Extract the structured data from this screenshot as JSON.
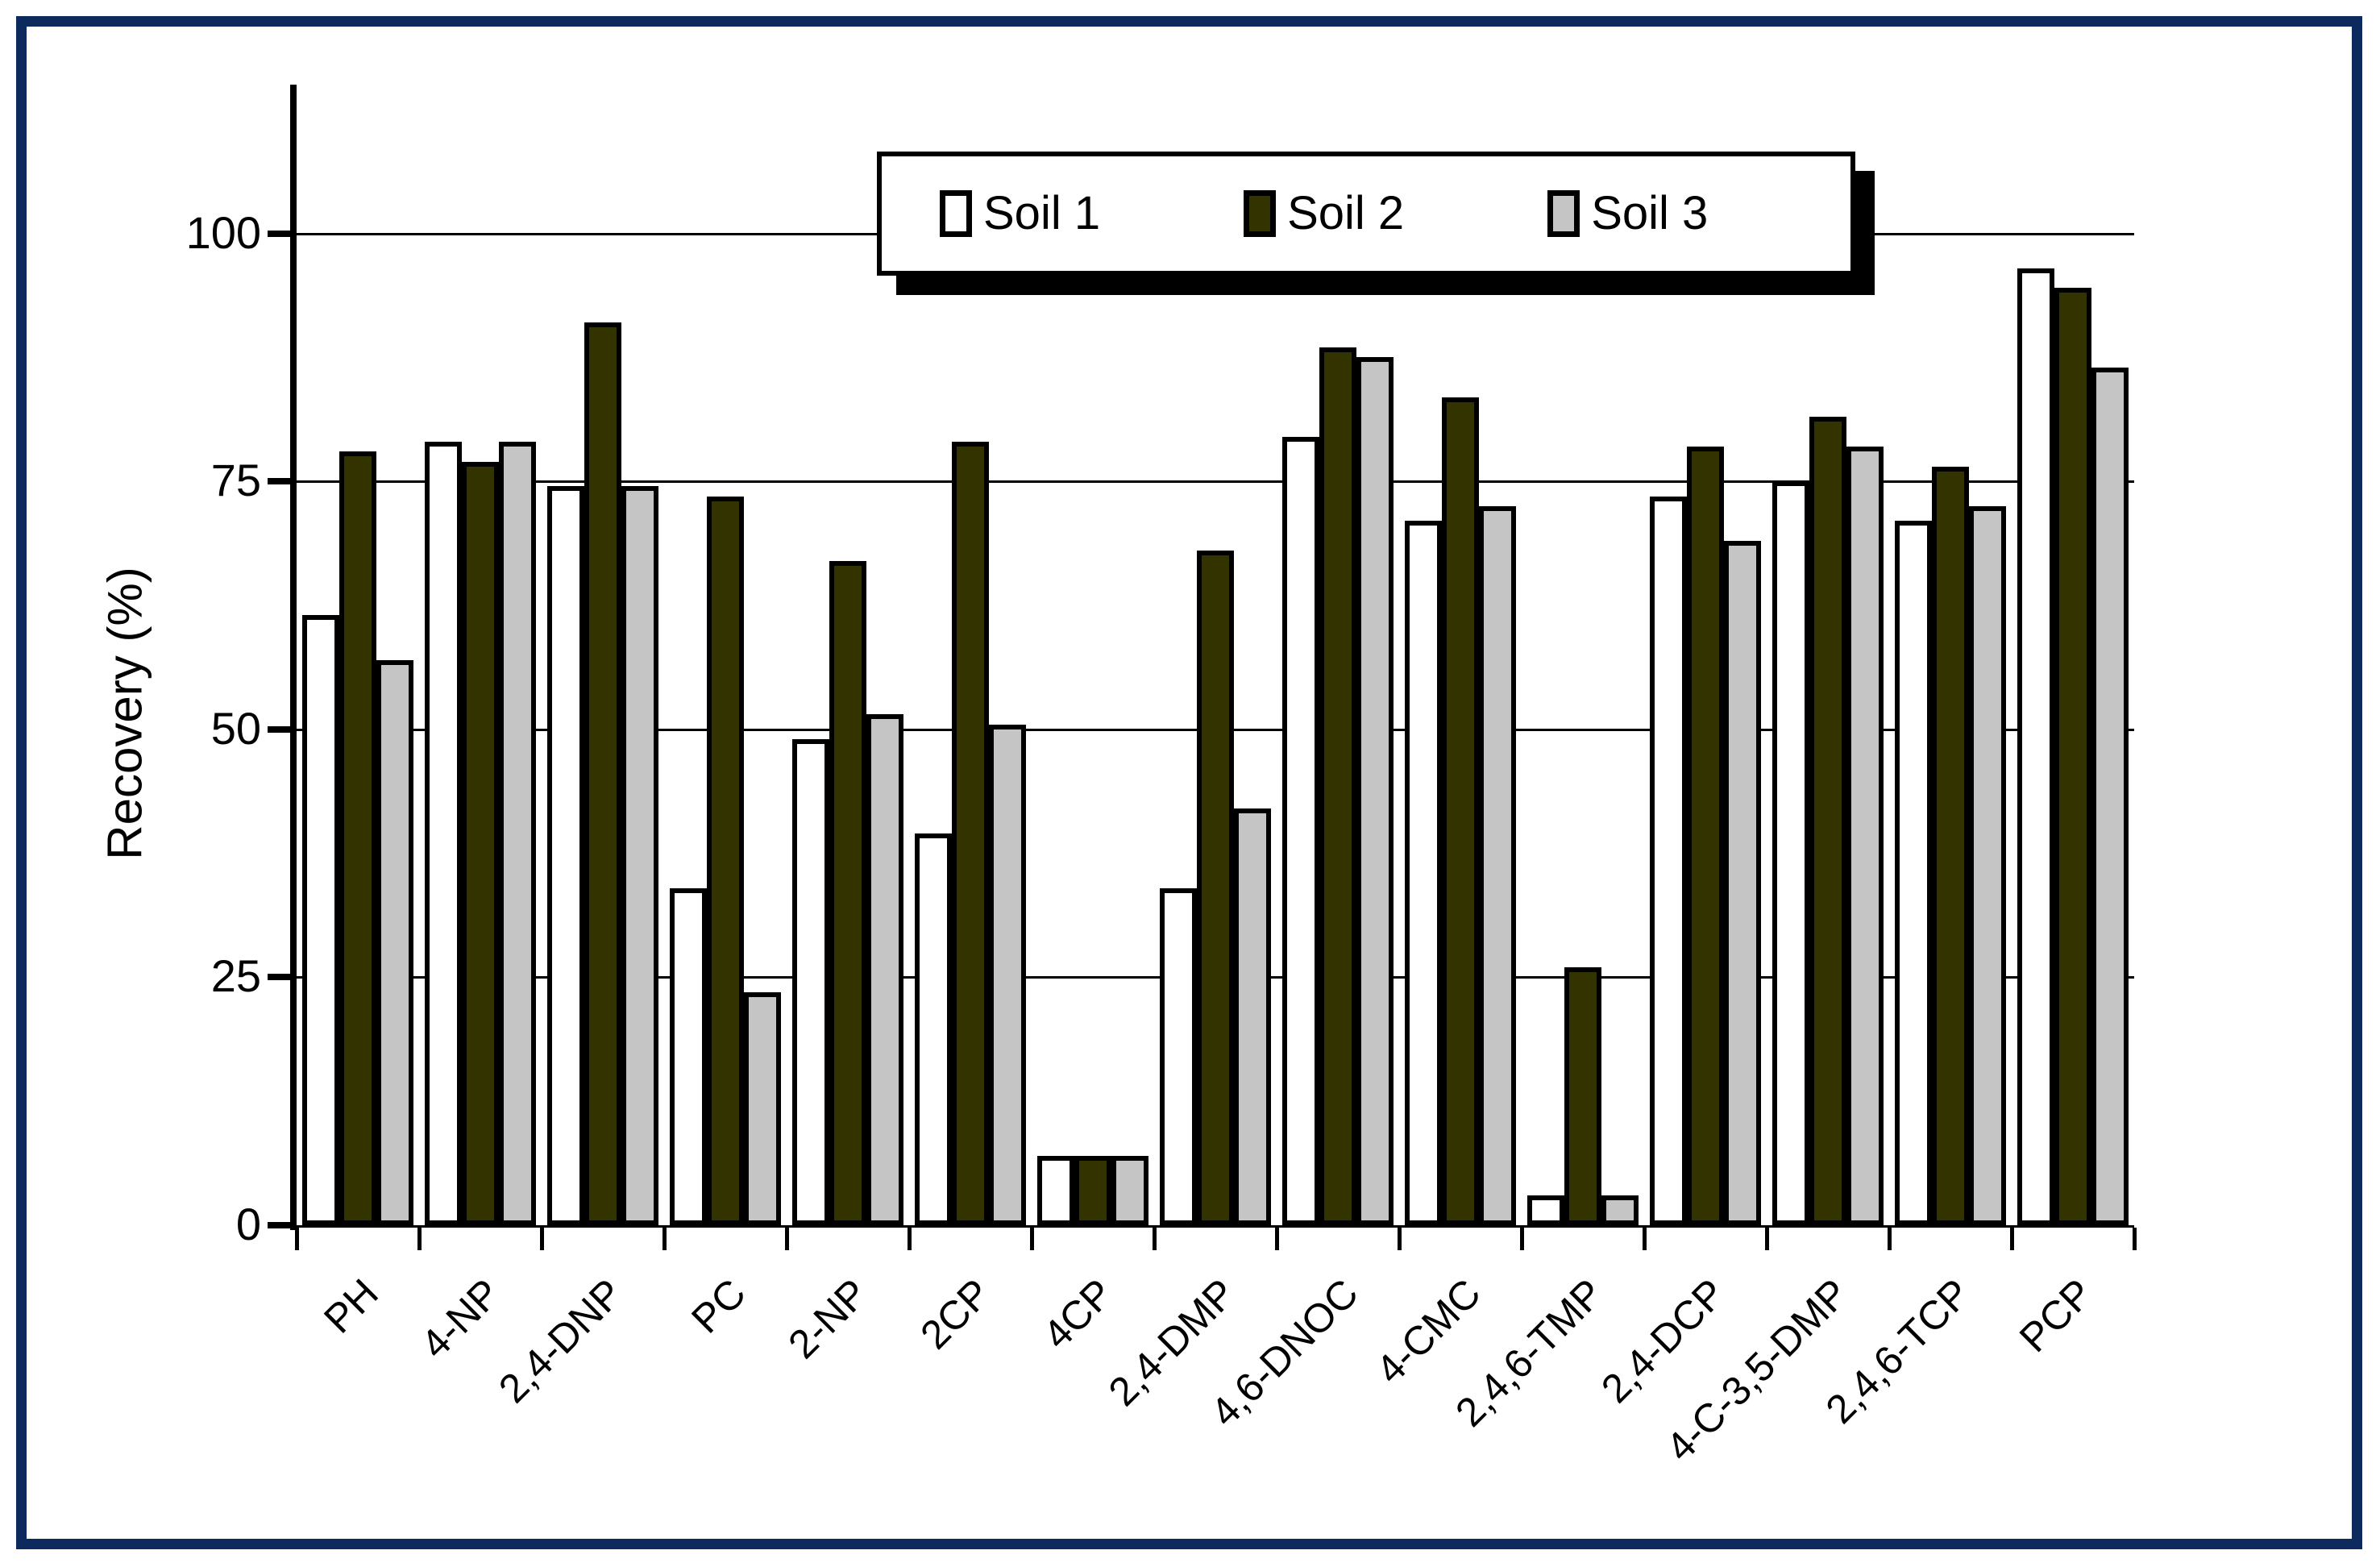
{
  "figure": {
    "background": "#FFFFFF",
    "frame_border_color": "#0D2A5E",
    "axis_color": "#000000"
  },
  "chart_data": {
    "type": "bar",
    "title": "",
    "xlabel": "",
    "ylabel": "Recovery (%)",
    "ylim": [
      0,
      115
    ],
    "yticks": [
      0,
      25,
      50,
      75,
      100
    ],
    "grid": true,
    "legend_position": "top-center",
    "categories": [
      "PH",
      "4-NP",
      "2,4-DNP",
      "PC",
      "2-NP",
      "2CP",
      "4CP",
      "2,4-DMP",
      "4,6-DNOC",
      "4-CMC",
      "2,4,6-TMP",
      "2,4-DCP",
      "4-C-3,5-DMP",
      "2,4,6-TCP",
      "PCP"
    ],
    "series": [
      {
        "name": "Soil 1",
        "color": "#FFFFFF",
        "values": [
          61.5,
          79,
          74.5,
          34,
          49,
          39.5,
          7,
          34,
          79.5,
          71,
          3,
          73.5,
          75,
          71,
          96.5
        ]
      },
      {
        "name": "Soil 2",
        "color": "#333300",
        "values": [
          78,
          77,
          91,
          73.5,
          67,
          79,
          7,
          68,
          88.5,
          83.5,
          26,
          78.5,
          81.5,
          76.5,
          94.5
        ]
      },
      {
        "name": "Soil 3",
        "color": "#C5C5C5",
        "values": [
          57,
          79,
          74.5,
          23.5,
          51.5,
          50.5,
          7,
          42,
          87.5,
          72.5,
          3,
          69,
          78.5,
          72.5,
          86.5
        ]
      }
    ]
  }
}
